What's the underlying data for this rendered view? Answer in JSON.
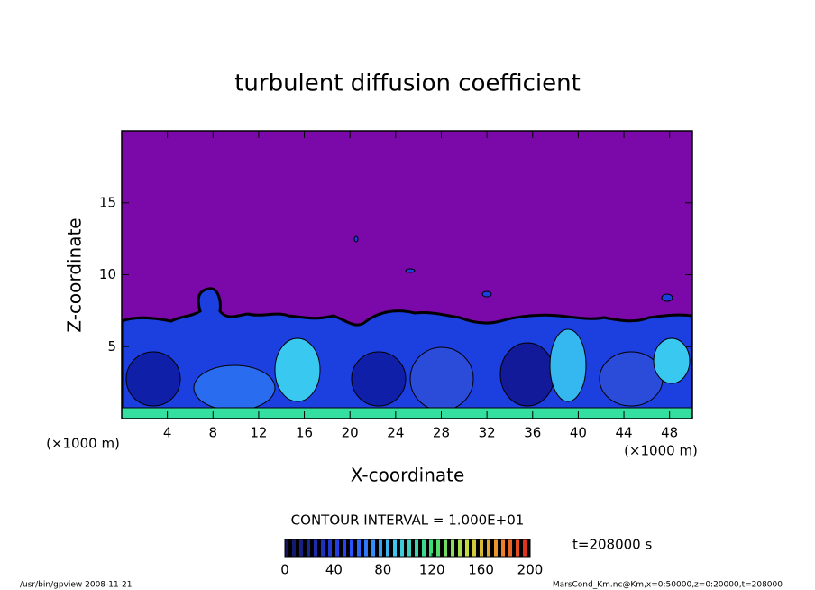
{
  "chart_data": {
    "type": "contour",
    "title": "turbulent diffusion coefficient",
    "x_label": "X-coordinate",
    "y_label": "Z-coordinate",
    "x_unit": "(×1000 m)",
    "y_unit": "(×1000 m)",
    "xlim": [
      0,
      50
    ],
    "xticks": [
      4,
      8,
      12,
      16,
      20,
      24,
      28,
      32,
      36,
      40,
      44,
      48
    ],
    "ylim": [
      0,
      20
    ],
    "yticks": [
      5,
      10,
      15
    ],
    "background_color": "#7b08a8",
    "contour_interval_text": "CONTOUR INTERVAL = 1.000E+01",
    "time_label": "t=208000 s",
    "colorbar": {
      "lim": [
        0,
        200
      ],
      "ticks": [
        0,
        40,
        80,
        120,
        160,
        200
      ]
    },
    "footer_left": "/usr/bin/gpview   2008-11-21",
    "footer_right": "MarsCond_Km.nc@Km,x=0:50000,z=0:20000,t=208000"
  }
}
